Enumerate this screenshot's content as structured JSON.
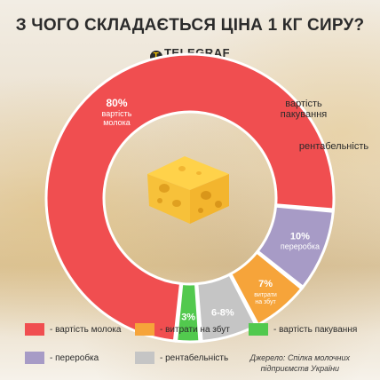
{
  "header": {
    "title": "З ЧОГО СКЛАДАЄТЬСЯ ЦІНА 1 КГ СИРУ?",
    "brand_logo": "T",
    "brand_name": "TELEGRAF"
  },
  "chart_data": {
    "type": "pie",
    "variant": "donut",
    "title": "З ЧОГО СКЛАДАЄТЬСЯ ЦІНА 1 КГ СИРУ?",
    "slices": [
      {
        "name": "вартість молока",
        "value": 80,
        "value_label": "80%",
        "label": "вартість молока",
        "color": "#f04e50"
      },
      {
        "name": "переробка",
        "value": 10,
        "value_label": "10%",
        "label": "переробка",
        "color": "#a79bc6"
      },
      {
        "name": "витрати на збут",
        "value": 7,
        "value_label": "7%",
        "label": "витрати на збут",
        "color": "#f6a43a"
      },
      {
        "name": "рентабельність",
        "value": 7,
        "value_label": "6-8%",
        "label": "рентабельність",
        "color": "#c5c5c5"
      },
      {
        "name": "вартість пакування",
        "value": 3,
        "value_label": "3%",
        "label": "вартість пакування",
        "color": "#52c94e"
      }
    ],
    "legend": [
      {
        "label": "- вартість молока",
        "color": "#f04e50"
      },
      {
        "label": "- витрати на збут",
        "color": "#f6a43a"
      },
      {
        "label": "- вартість пакування",
        "color": "#52c94e"
      },
      {
        "label": "- переробка",
        "color": "#a79bc6"
      },
      {
        "label": "- рентабельність",
        "color": "#c5c5c5"
      }
    ],
    "legend_position": "bottom"
  },
  "source": {
    "line1": "Джерело: Спілка молочних",
    "line2": "підприємств України"
  }
}
